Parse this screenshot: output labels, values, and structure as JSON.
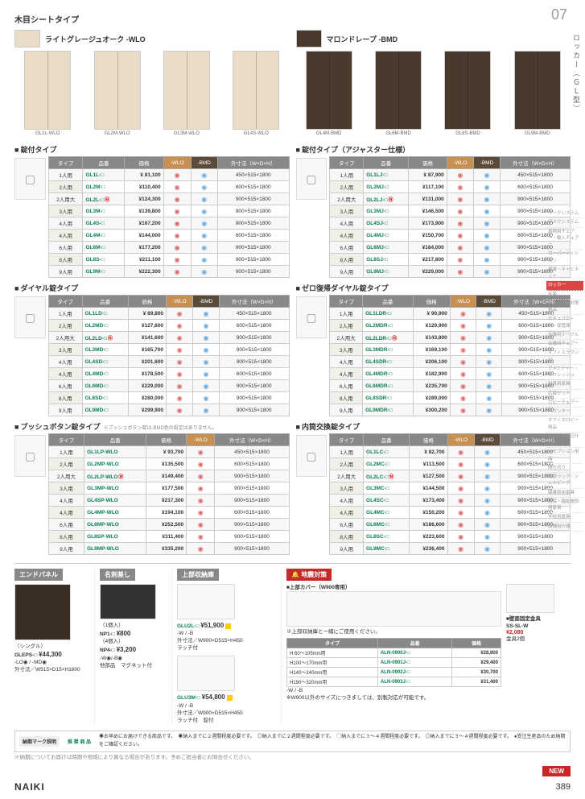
{
  "page_number": "07",
  "side_label": "ロッカー（ＧＬ型）",
  "page_foot": "389",
  "brand": "NAIKI",
  "section_title": "木目シートタイプ",
  "variants": {
    "left": {
      "name": "ライトグレージュオーク -WLO",
      "swatch": "#e8dcc8"
    },
    "right": {
      "name": "マロンドレープ -BMD",
      "swatch": "#4a3a2e"
    }
  },
  "products_left": [
    "GL1L-WLO",
    "GL2M-WLO",
    "GL3M-WLO",
    "GL4S-WLO"
  ],
  "products_right": [
    "GL4M-BMD",
    "GL6M-BMD",
    "GL8S-BMD",
    "GL9M-BMD"
  ],
  "tables": {
    "lock": {
      "title": "錠付タイプ",
      "rows": [
        {
          "t": "1人用",
          "c": "GL1L-□",
          "p": "¥ 81,100",
          "d": "450×515×1800"
        },
        {
          "t": "2人用",
          "c": "GL2M-□",
          "p": "¥110,400",
          "d": "600×515×1800"
        },
        {
          "t": "2人用大",
          "c": "GL2L-□",
          "n": true,
          "p": "¥124,300",
          "d": "900×515×1800"
        },
        {
          "t": "3人用",
          "c": "GL3M-□",
          "p": "¥139,800",
          "d": "900×515×1800"
        },
        {
          "t": "4人用",
          "c": "GL4S-□",
          "p": "¥167,200",
          "d": "900×515×1800"
        },
        {
          "t": "4人用",
          "c": "GL4M-□",
          "p": "¥144,000",
          "d": "600×515×1800"
        },
        {
          "t": "6人用",
          "c": "GL6M-□",
          "p": "¥177,200",
          "d": "900×515×1800"
        },
        {
          "t": "8人用",
          "c": "GL8S-□",
          "p": "¥211,100",
          "d": "900×515×1800"
        },
        {
          "t": "9人用",
          "c": "GL9M-□",
          "p": "¥222,300",
          "d": "900×515×1800"
        }
      ]
    },
    "lock_adj": {
      "title": "錠付タイプ（アジャスター仕様）",
      "rows": [
        {
          "t": "1人用",
          "c": "GL1LJ-□",
          "p": "¥ 87,900",
          "d": "450×515×1800"
        },
        {
          "t": "2人用",
          "c": "GL2MJ-□",
          "p": "¥117,100",
          "d": "600×515×1800"
        },
        {
          "t": "2人用大",
          "c": "GL2LJ-□",
          "n": true,
          "p": "¥131,000",
          "d": "900×515×1800"
        },
        {
          "t": "3人用",
          "c": "GL3MJ-□",
          "p": "¥146,500",
          "d": "900×515×1800"
        },
        {
          "t": "4人用",
          "c": "GL4SJ-□",
          "p": "¥173,900",
          "d": "900×515×1800"
        },
        {
          "t": "4人用",
          "c": "GL4MJ-□",
          "p": "¥150,700",
          "d": "600×515×1800"
        },
        {
          "t": "6人用",
          "c": "GL6MJ-□",
          "p": "¥184,000",
          "d": "900×515×1800"
        },
        {
          "t": "8人用",
          "c": "GL8SJ-□",
          "p": "¥217,800",
          "d": "900×515×1800"
        },
        {
          "t": "9人用",
          "c": "GL9MJ-□",
          "p": "¥229,000",
          "d": "900×515×1800"
        }
      ]
    },
    "dial": {
      "title": "ダイヤル錠タイプ",
      "rows": [
        {
          "t": "1人用",
          "c": "GL1LD-□",
          "p": "¥ 89,800",
          "d": "450×515×1800"
        },
        {
          "t": "2人用",
          "c": "GL2MD-□",
          "p": "¥127,600",
          "d": "600×515×1800"
        },
        {
          "t": "2人用大",
          "c": "GL2LD-□",
          "n": true,
          "p": "¥141,600",
          "d": "900×515×1800"
        },
        {
          "t": "3人用",
          "c": "GL3MD-□",
          "p": "¥165,700",
          "d": "900×515×1800"
        },
        {
          "t": "4人用",
          "c": "GL4SD-□",
          "p": "¥201,600",
          "d": "900×515×1800"
        },
        {
          "t": "4人用",
          "c": "GL4MD-□",
          "p": "¥178,500",
          "d": "600×515×1800"
        },
        {
          "t": "6人用",
          "c": "GL6MD-□",
          "p": "¥229,000",
          "d": "900×515×1800"
        },
        {
          "t": "8人用",
          "c": "GL8SD-□",
          "p": "¥280,000",
          "d": "900×515×1800"
        },
        {
          "t": "9人用",
          "c": "GL9MD-□",
          "p": "¥299,900",
          "d": "900×515×1800"
        }
      ]
    },
    "zero_dial": {
      "title": "ゼロ復帰ダイヤル錠タイプ",
      "rows": [
        {
          "t": "1人用",
          "c": "GL1LDR-□",
          "p": "¥ 90,900",
          "d": "450×515×1800"
        },
        {
          "t": "2人用",
          "c": "GL2MDR-□",
          "p": "¥129,900",
          "d": "600×515×1800"
        },
        {
          "t": "2人用大",
          "c": "GL2LDR-□",
          "n": true,
          "p": "¥143,800",
          "d": "900×515×1800"
        },
        {
          "t": "3人用",
          "c": "GL3MDR-□",
          "p": "¥169,100",
          "d": "900×515×1800"
        },
        {
          "t": "4人用",
          "c": "GL4SDR-□",
          "p": "¥206,100",
          "d": "900×515×1800"
        },
        {
          "t": "4人用",
          "c": "GL4MDR-□",
          "p": "¥182,900",
          "d": "600×515×1800"
        },
        {
          "t": "6人用",
          "c": "GL6MDR-□",
          "p": "¥235,700",
          "d": "900×515×1800"
        },
        {
          "t": "8人用",
          "c": "GL8SDR-□",
          "p": "¥289,000",
          "d": "900×515×1800"
        },
        {
          "t": "9人用",
          "c": "GL9MDR-□",
          "p": "¥300,200",
          "d": "900×515×1800"
        }
      ]
    },
    "push": {
      "title": "プッシュボタン錠タイプ",
      "note": "※プッシュボタン錠は-BMD色の設定はありません。",
      "rows": [
        {
          "t": "1人用",
          "c": "GL1LP-WLO",
          "p": "¥ 93,700",
          "d": "450×515×1800"
        },
        {
          "t": "2人用",
          "c": "GL2MP-WLO",
          "p": "¥135,500",
          "d": "600×515×1800"
        },
        {
          "t": "2人用大",
          "c": "GL2LP-WLO",
          "n": true,
          "p": "¥149,400",
          "d": "900×515×1800"
        },
        {
          "t": "3人用",
          "c": "GL3MP-WLO",
          "p": "¥177,500",
          "d": "900×515×1800"
        },
        {
          "t": "4人用",
          "c": "GL4SP-WLO",
          "p": "¥217,300",
          "d": "900×515×1800"
        },
        {
          "t": "4人用",
          "c": "GL4MP-WLO",
          "p": "¥194,100",
          "d": "600×515×1800"
        },
        {
          "t": "6人用",
          "c": "GL6MP-WLO",
          "p": "¥252,500",
          "d": "900×515×1800"
        },
        {
          "t": "8人用",
          "c": "GL8SP-WLO",
          "p": "¥311,400",
          "d": "900×515×1800"
        },
        {
          "t": "9人用",
          "c": "GL9MP-WLO",
          "p": "¥335,200",
          "d": "900×515×1800"
        }
      ]
    },
    "inner": {
      "title": "内筒交換錠タイプ",
      "rows": [
        {
          "t": "1人用",
          "c": "GL1LC-□",
          "p": "¥ 82,700",
          "d": "450×515×1800"
        },
        {
          "t": "2人用",
          "c": "GL2MC-□",
          "p": "¥113,500",
          "d": "600×515×1800"
        },
        {
          "t": "2人用大",
          "c": "GL2LC-□",
          "n": true,
          "p": "¥127,500",
          "d": "900×515×1800"
        },
        {
          "t": "3人用",
          "c": "GL3MC-□",
          "p": "¥144,500",
          "d": "900×515×1800"
        },
        {
          "t": "4人用",
          "c": "GL4SC-□",
          "p": "¥173,400",
          "d": "900×515×1800"
        },
        {
          "t": "4人用",
          "c": "GL4MC-□",
          "p": "¥150,200",
          "d": "600×515×1800"
        },
        {
          "t": "6人用",
          "c": "GL6MC-□",
          "p": "¥186,600",
          "d": "900×515×1800"
        },
        {
          "t": "8人用",
          "c": "GL8SC-□",
          "p": "¥223,600",
          "d": "900×515×1800"
        },
        {
          "t": "9人用",
          "c": "GL9MC-□",
          "p": "¥236,400",
          "d": "900×515×1800"
        }
      ]
    }
  },
  "headers": {
    "type": "タイプ",
    "code": "品番",
    "price": "価格",
    "wlo": "-WLO",
    "bmd": "-BMD",
    "dim": "外寸法（W×D×H）"
  },
  "bottom": {
    "end_panel": {
      "title": "エンドパネル",
      "code": "GLEPS-□",
      "price": "¥44,300",
      "sub": "（シングル）",
      "spec": "-LO◉ / -MD◉\n外寸法／W515×D15×H1800"
    },
    "card": {
      "title": "名刺差し",
      "r1": "（1個入）",
      "c1": "NP1-□",
      "p1": "¥800",
      "r2": "（4個入）",
      "c2": "NP4-□",
      "p2": "¥3,200",
      "spec": "-W◉/-B◉\n他部品　マグネット付"
    },
    "upper": {
      "title": "上部収納庫",
      "c1": "GLU2L-□",
      "p1": "¥51,900",
      "s1": "-W / -B\n外寸法／W900×D515×H450\nラッチ付",
      "c2": "GLU3M-□",
      "p2": "¥54,800",
      "s2": "-W / -B\n外寸法／W900×D515×H450\nラッチ付　錠付"
    },
    "quake": {
      "title": "地震対策",
      "sub": "■上部カバー（W900専用）",
      "note": "※上部収納庫と一緒にご使用ください。",
      "rows": [
        {
          "t": "H 60～105mm用",
          "c": "ALN-0900J-□",
          "p": "¥28,800"
        },
        {
          "t": "H100～170mm用",
          "c": "ALN-0901J-□",
          "p": "¥29,400"
        },
        {
          "t": "H140～240mm用",
          "c": "ALN-0902J-□",
          "p": "¥30,700"
        },
        {
          "t": "H190～320mm用",
          "c": "ALN-0903J-□",
          "p": "¥31,400"
        }
      ],
      "foot": "-W / -B\n※W900以外のサイズにつきましては、別製対応が可能です。",
      "wall": {
        "label": "■壁面固定金具",
        "code": "SS-SL-W",
        "price": "¥2,080",
        "qty": "金具2個"
      }
    }
  },
  "legend": {
    "label": "納期マーク説明",
    "rec": "推 奨 商 品",
    "items": [
      "◉お早めにお届けできる商品です。",
      "◉納入までに２週間程度必要です。",
      "◎納入までに２週間程度必要です。",
      "◯納入までに３～４週間程度必要です。",
      "◎納入までに３～４週間程度必要です。",
      "●受注生産品のため納期をご確認ください。"
    ],
    "note": "※納期についてお届けは時期や地域により異なる場合があります。予めご担当者にお問合せください。"
  },
  "sidebar": [
    "ワークシステム",
    "デスクシステム",
    "事務用チェアー・輸入チェアー",
    "ローパーティション",
    "書庫・キャビネット",
    "ロッカー",
    "金庫",
    "防災・地震対策製品",
    "セキュリティー・保管庫",
    "会議用テーブル",
    "会議用チェアー",
    "オフィスラウンジ",
    "アメニティー・リフレッシュ",
    "役員用家具",
    "応接セット",
    "ロビーチェアー",
    "カウンター",
    "オフィスロビー用品",
    "オフィス周辺什器",
    "レセプション用品",
    "間仕切り",
    "移動ラック・シェルビング",
    "図書館用家具",
    "病院・福祉施設用家具",
    "学校用家具",
    "店舗用什器"
  ]
}
